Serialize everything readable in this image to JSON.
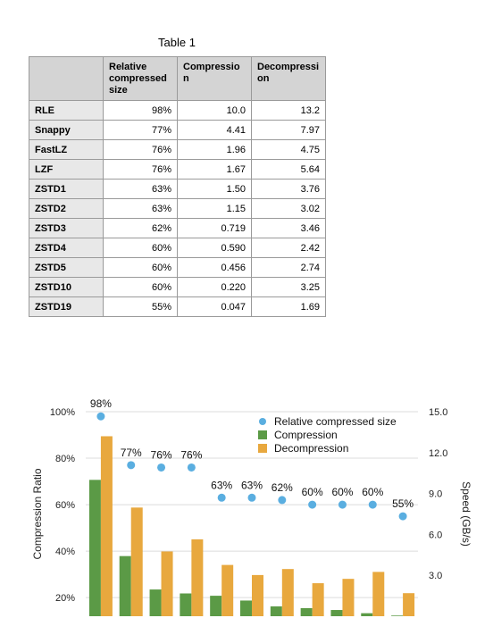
{
  "table": {
    "title": "Table 1",
    "headers": [
      "",
      "Relative compressed size",
      "Compression",
      "Decompression"
    ],
    "header_display": [
      [],
      [
        "Relative",
        "compressed",
        "size"
      ],
      [
        "Compressio",
        "n"
      ],
      [
        "Decompressi",
        "on"
      ]
    ],
    "rows": [
      {
        "name": "RLE",
        "size": "98%",
        "compression": "10.0",
        "decompression": "13.2"
      },
      {
        "name": "Snappy",
        "size": "77%",
        "compression": "4.41",
        "decompression": "7.97"
      },
      {
        "name": "FastLZ",
        "size": "76%",
        "compression": "1.96",
        "decompression": "4.75"
      },
      {
        "name": "LZF",
        "size": "76%",
        "compression": "1.67",
        "decompression": "5.64"
      },
      {
        "name": "ZSTD1",
        "size": "63%",
        "compression": "1.50",
        "decompression": "3.76"
      },
      {
        "name": "ZSTD2",
        "size": "63%",
        "compression": "1.15",
        "decompression": "3.02"
      },
      {
        "name": "ZSTD3",
        "size": "62%",
        "compression": "0.719",
        "decompression": "3.46"
      },
      {
        "name": "ZSTD4",
        "size": "60%",
        "compression": "0.590",
        "decompression": "2.42"
      },
      {
        "name": "ZSTD5",
        "size": "60%",
        "compression": "0.456",
        "decompression": "2.74"
      },
      {
        "name": "ZSTD10",
        "size": "60%",
        "compression": "0.220",
        "decompression": "3.25"
      },
      {
        "name": "ZSTD19",
        "size": "55%",
        "compression": "0.047",
        "decompression": "1.69"
      }
    ]
  },
  "chart_data": {
    "type": "bar",
    "categories": [
      "RLE",
      "Snappy",
      "FastLZ",
      "LZF",
      "ZSTD1",
      "ZSTD2",
      "ZSTD3",
      "ZSTD4",
      "ZSTD5",
      "ZSTD10",
      "ZSTD19"
    ],
    "category_labels_shown": false,
    "series": [
      {
        "name": "Compression",
        "kind": "bar",
        "axis": "right",
        "color": "#5b9a46",
        "values": [
          10.0,
          4.41,
          1.96,
          1.67,
          1.5,
          1.15,
          0.719,
          0.59,
          0.456,
          0.22,
          0.047
        ]
      },
      {
        "name": "Decompression",
        "kind": "bar",
        "axis": "right",
        "color": "#e8a83e",
        "values": [
          13.2,
          7.97,
          4.75,
          5.64,
          3.76,
          3.02,
          3.46,
          2.42,
          2.74,
          3.25,
          1.69
        ]
      },
      {
        "name": "Relative compressed size",
        "kind": "scatter",
        "axis": "left",
        "color": "#5aaee0",
        "values": [
          98,
          77,
          76,
          76,
          63,
          63,
          62,
          60,
          60,
          60,
          55
        ],
        "labels": [
          "98%",
          "77%",
          "76%",
          "76%",
          "63%",
          "63%",
          "62%",
          "60%",
          "60%",
          "60%",
          "55%"
        ]
      }
    ],
    "ylabel": "Compression Ratio",
    "y2label": "Speed (GB/s)",
    "ylim": [
      12,
      100
    ],
    "y2lim": [
      0,
      15
    ],
    "yticks": [
      20,
      40,
      60,
      80,
      100
    ],
    "ytick_labels": [
      "20%",
      "40%",
      "60%",
      "80%",
      "100%"
    ],
    "y2ticks": [
      3,
      6,
      9,
      12,
      15
    ],
    "y2tick_labels": [
      "3.0",
      "6.0",
      "9.0",
      "12.0",
      "15.0"
    ],
    "grid": true,
    "legend": "top-right"
  }
}
